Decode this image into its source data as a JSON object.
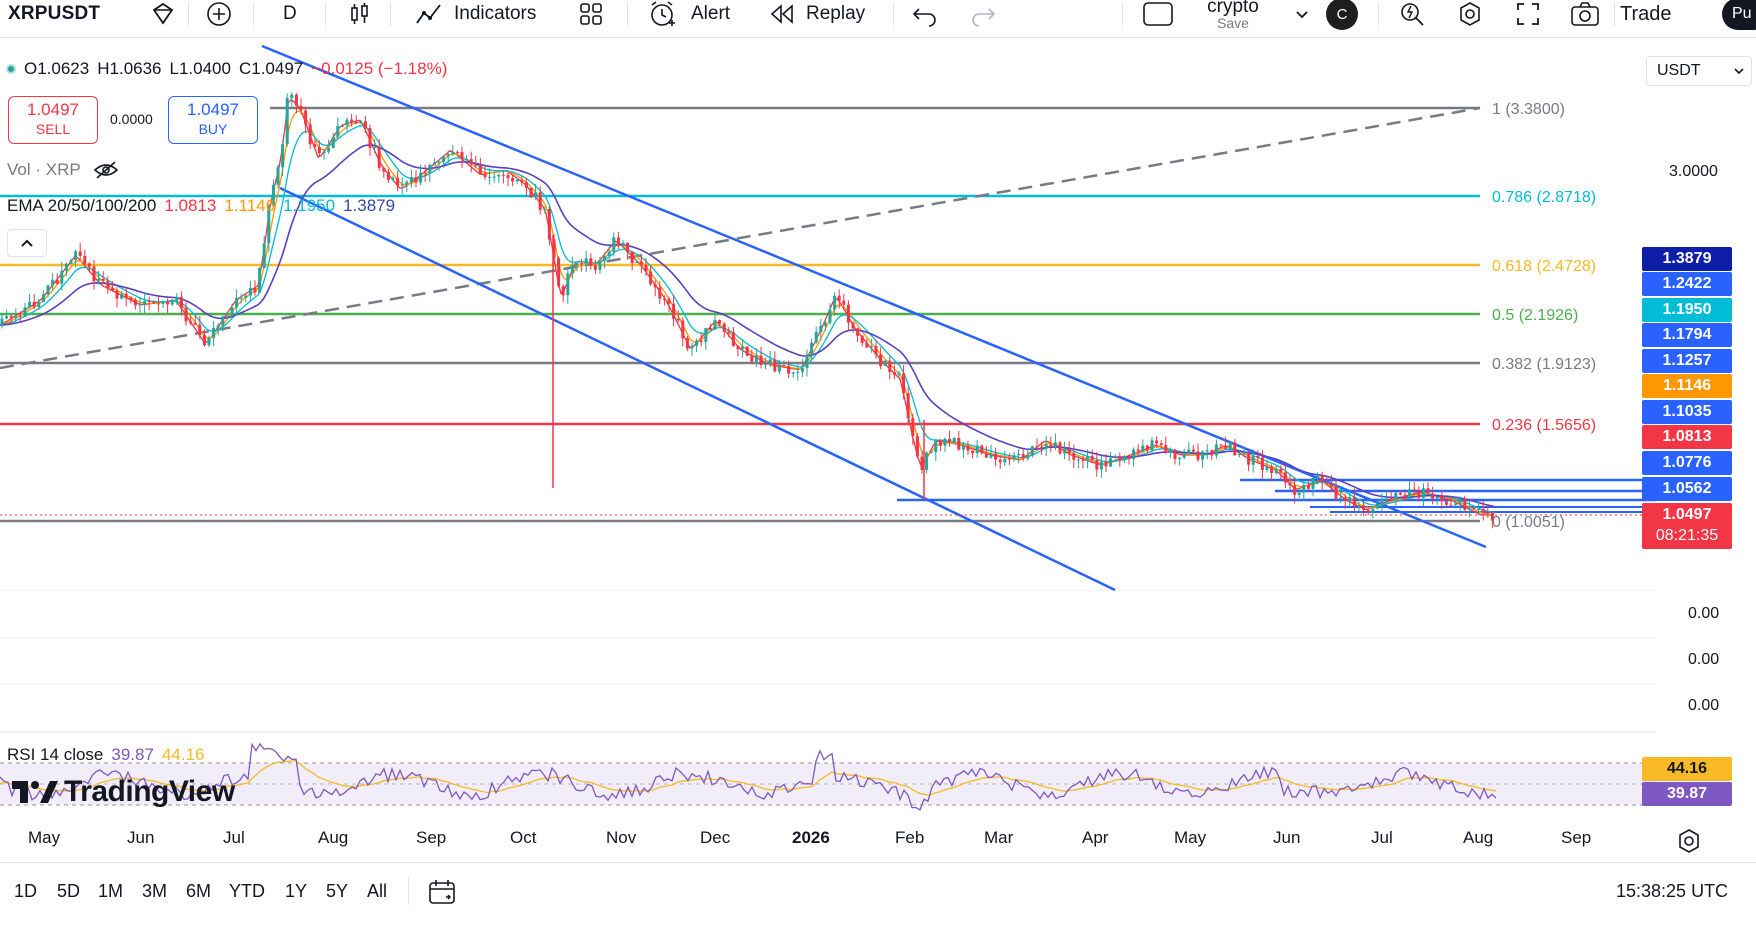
{
  "toolbar": {
    "symbol": "XRPUSDT",
    "interval": "D",
    "indicators_label": "Indicators",
    "alert_label": "Alert",
    "replay_label": "Replay",
    "layout_name": "crypto",
    "layout_save": "Save",
    "avatar_letter": "C",
    "trade_label": "Trade",
    "publish_label": "Pu"
  },
  "legend": {
    "open": "O1.0623",
    "high": "H1.0636",
    "low": "L1.0400",
    "close": "C1.0497",
    "change": "−0.0125 (−1.18%)",
    "sell_price": "1.0497",
    "sell_label": "SELL",
    "spread": "0.0000",
    "buy_price": "1.0497",
    "buy_label": "BUY",
    "vol": "Vol · XRP",
    "ema_name": "EMA 20/50/100/200",
    "ema_values": [
      "1.0813",
      "1.1146",
      "1.1950",
      "1.3879"
    ],
    "rsi_name": "RSI 14 close",
    "rsi_values": [
      "39.87",
      "44.16"
    ],
    "brand": "TradingView"
  },
  "price_axis": {
    "currency": "USDT",
    "labels": [
      "3.0000",
      "0.00",
      "0.00",
      "0.00"
    ],
    "tags": [
      "1.3879",
      "1.2422",
      "1.1950",
      "1.1794",
      "1.1257",
      "1.1146",
      "1.1035",
      "1.0813",
      "1.0776",
      "1.0562",
      "1.0497"
    ],
    "countdown": "08:21:35",
    "rsi_tags": [
      "44.16",
      "39.87"
    ]
  },
  "fib": {
    "levels": [
      "1 (3.3800)",
      "0.786 (2.8718)",
      "0.618 (2.4728)",
      "0.5 (2.1926)",
      "0.382 (1.9123)",
      "0.236 (1.5656)",
      "0 (1.0051)"
    ],
    "colors": [
      "#787b86",
      "#00bcd4",
      "#f7b924",
      "#4caf50",
      "#787b86",
      "#f23645",
      "#787b86"
    ]
  },
  "time_axis": {
    "months": [
      "May",
      "Jun",
      "Jul",
      "Aug",
      "Sep",
      "Oct",
      "Nov",
      "Dec",
      "2026",
      "Feb",
      "Mar",
      "Apr",
      "May",
      "Jun",
      "Jul",
      "Aug",
      "Sep"
    ]
  },
  "bottom_bar": {
    "ranges": [
      "1D",
      "5D",
      "1M",
      "3M",
      "6M",
      "YTD",
      "1Y",
      "5Y",
      "All"
    ],
    "clock": "15:38:25 UTC"
  },
  "colors": {
    "up": "#26a69a",
    "down": "#f23645",
    "ema20": "#f23645",
    "ema50": "#ff9800",
    "ema100": "#00bcd4",
    "ema200": "#5b3fc4",
    "channel": "#2962ff",
    "rsi": "#7e57c2",
    "rsi_ma": "#f7b924"
  },
  "chart_data": {
    "type": "candlestick",
    "symbol": "XRPUSDT",
    "interval": "D",
    "x": [
      "May",
      "Jun",
      "Jul",
      "Aug",
      "Sep",
      "Oct",
      "Nov",
      "Dec",
      "2026",
      "Feb",
      "Mar",
      "Apr",
      "May",
      "Jun",
      "Jul",
      "Aug"
    ],
    "close_approx": [
      2.25,
      2.15,
      2.25,
      3.05,
      2.85,
      2.6,
      2.35,
      2.05,
      1.9,
      1.55,
      1.45,
      1.4,
      1.45,
      1.2,
      1.1,
      1.05
    ],
    "last": {
      "open": 1.0623,
      "high": 1.0636,
      "low": 1.04,
      "close": 1.0497
    },
    "ema": {
      "20": 1.0813,
      "50": 1.1146,
      "100": 1.195,
      "200": 1.3879
    },
    "rsi": {
      "rsi": 39.87,
      "ma": 44.16
    },
    "fib_levels": [
      {
        "ratio": 1,
        "price": 3.38
      },
      {
        "ratio": 0.786,
        "price": 2.8718
      },
      {
        "ratio": 0.618,
        "price": 2.4728
      },
      {
        "ratio": 0.5,
        "price": 2.1926
      },
      {
        "ratio": 0.382,
        "price": 1.9123
      },
      {
        "ratio": 0.236,
        "price": 1.5656
      },
      {
        "ratio": 0,
        "price": 1.0051
      }
    ]
  }
}
